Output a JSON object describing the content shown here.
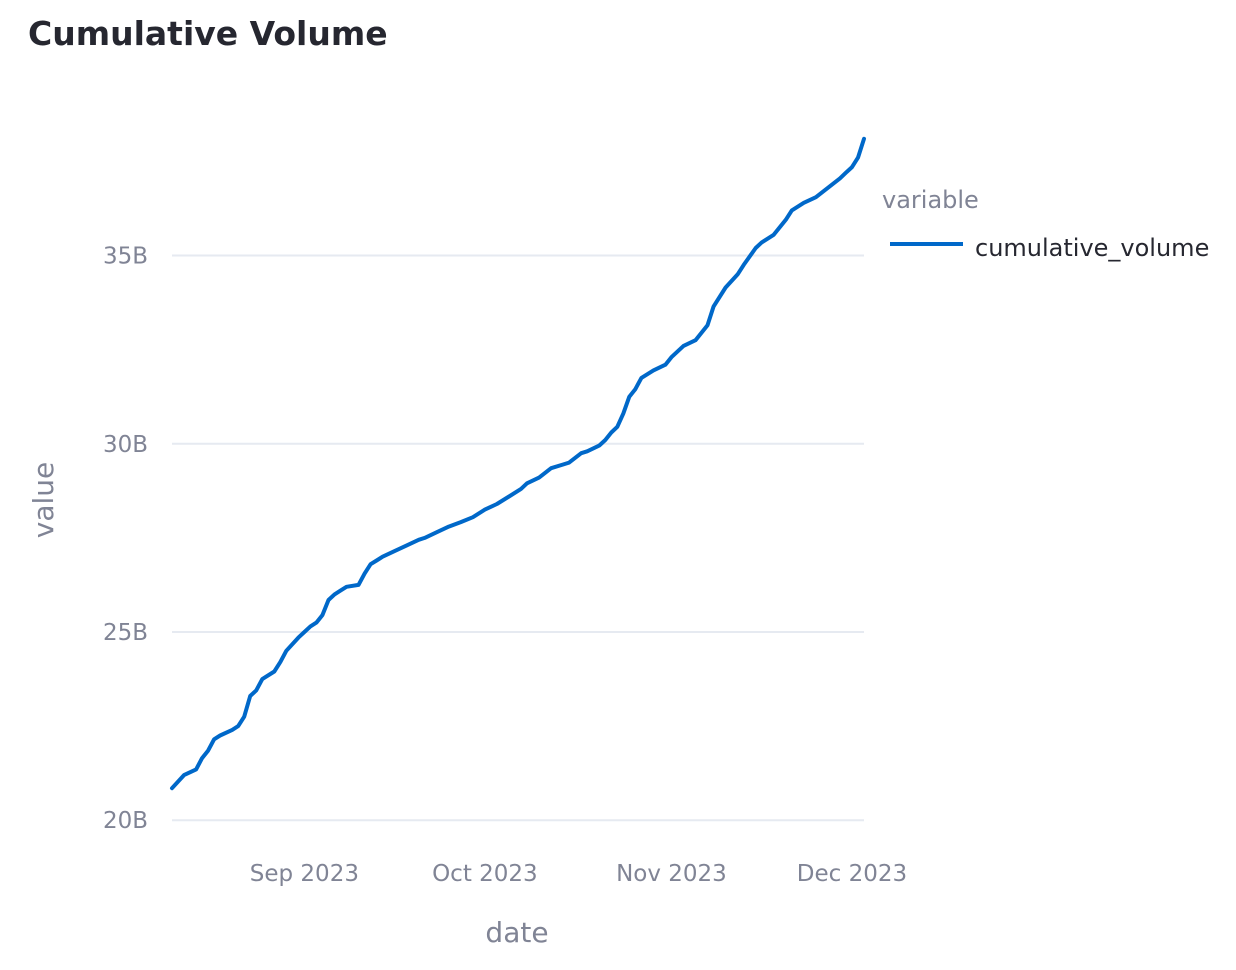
{
  "chart_data": {
    "type": "line",
    "title": "Cumulative Volume",
    "xlabel": "date",
    "ylabel": "value",
    "x_ticks": [
      {
        "date": "2023-09-01",
        "label": "Sep 2023"
      },
      {
        "date": "2023-10-01",
        "label": "Oct 2023"
      },
      {
        "date": "2023-11-01",
        "label": "Nov 2023"
      },
      {
        "date": "2023-12-01",
        "label": "Dec 2023"
      }
    ],
    "y_ticks": [
      {
        "value": 20,
        "label": "20B"
      },
      {
        "value": 25,
        "label": "25B"
      },
      {
        "value": 30,
        "label": "30B"
      },
      {
        "value": 35,
        "label": "35B"
      }
    ],
    "y_unit": "B",
    "xlim": [
      "2023-08-10",
      "2023-12-03"
    ],
    "ylim": [
      19.9,
      38.6
    ],
    "grid": "horizontal",
    "legend": {
      "title": "variable",
      "position": "right"
    },
    "series": [
      {
        "name": "cumulative_volume",
        "color": "#0068c9",
        "x": [
          "2023-08-10",
          "2023-08-12",
          "2023-08-14",
          "2023-08-15",
          "2023-08-16",
          "2023-08-17",
          "2023-08-18",
          "2023-08-20",
          "2023-08-21",
          "2023-08-22",
          "2023-08-23",
          "2023-08-24",
          "2023-08-25",
          "2023-08-27",
          "2023-08-28",
          "2023-08-29",
          "2023-08-31",
          "2023-09-01",
          "2023-09-02",
          "2023-09-03",
          "2023-09-04",
          "2023-09-05",
          "2023-09-06",
          "2023-09-07",
          "2023-09-08",
          "2023-09-10",
          "2023-09-11",
          "2023-09-12",
          "2023-09-13",
          "2023-09-14",
          "2023-09-16",
          "2023-09-18",
          "2023-09-20",
          "2023-09-21",
          "2023-09-23",
          "2023-09-25",
          "2023-09-27",
          "2023-09-29",
          "2023-10-01",
          "2023-10-03",
          "2023-10-05",
          "2023-10-07",
          "2023-10-08",
          "2023-10-10",
          "2023-10-12",
          "2023-10-14",
          "2023-10-15",
          "2023-10-17",
          "2023-10-18",
          "2023-10-20",
          "2023-10-21",
          "2023-10-22",
          "2023-10-23",
          "2023-10-24",
          "2023-10-25",
          "2023-10-26",
          "2023-10-27",
          "2023-10-29",
          "2023-10-31",
          "2023-11-01",
          "2023-11-03",
          "2023-11-05",
          "2023-11-06",
          "2023-11-07",
          "2023-11-08",
          "2023-11-10",
          "2023-11-12",
          "2023-11-13",
          "2023-11-15",
          "2023-11-16",
          "2023-11-18",
          "2023-11-20",
          "2023-11-21",
          "2023-11-23",
          "2023-11-25",
          "2023-11-27",
          "2023-11-29",
          "2023-11-30",
          "2023-12-01",
          "2023-12-02",
          "2023-12-03"
        ],
        "y": [
          20.85,
          21.2,
          21.35,
          21.65,
          21.85,
          22.15,
          22.25,
          22.4,
          22.5,
          22.75,
          23.3,
          23.45,
          23.75,
          23.95,
          24.2,
          24.5,
          24.85,
          25.0,
          25.15,
          25.25,
          25.45,
          25.85,
          26.0,
          26.1,
          26.2,
          26.25,
          26.55,
          26.8,
          26.9,
          27.0,
          27.15,
          27.3,
          27.45,
          27.5,
          27.65,
          27.8,
          27.92,
          28.05,
          28.25,
          28.4,
          28.6,
          28.8,
          28.95,
          29.1,
          29.35,
          29.45,
          29.5,
          29.75,
          29.8,
          29.95,
          30.1,
          30.3,
          30.45,
          30.8,
          31.25,
          31.45,
          31.75,
          31.95,
          32.1,
          32.3,
          32.6,
          32.75,
          32.95,
          33.15,
          33.65,
          34.15,
          34.5,
          34.75,
          35.2,
          35.35,
          35.55,
          35.95,
          36.2,
          36.4,
          36.55,
          36.8,
          37.05,
          37.2,
          37.35,
          37.6,
          38.1
        ]
      }
    ]
  }
}
